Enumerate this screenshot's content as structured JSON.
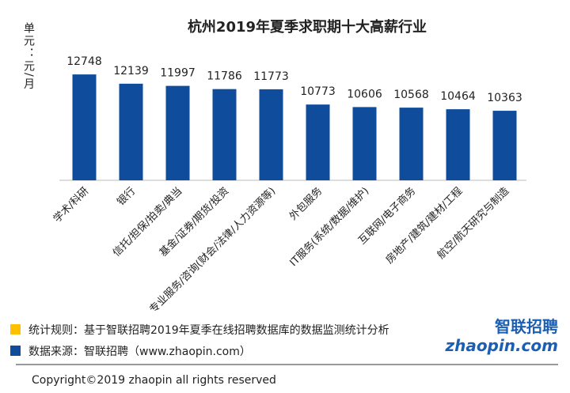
{
  "chart_data": {
    "type": "bar",
    "title": "杭州2019年夏季求职期十大高薪行业",
    "y_label": "单元：元/月",
    "categories": [
      "学术/科研",
      "银行",
      "信托/担保/拍卖/典当",
      "基金/证券/期货/投资",
      "专业服务/咨询(财会/法律/人力资源等)",
      "外包服务",
      "IT服务(系统/数据/维护)",
      "互联网/电子商务",
      "房地产/建筑/建材/工程",
      "航空/航天研究与制造"
    ],
    "values": [
      12748,
      12139,
      11997,
      11786,
      11773,
      10773,
      10606,
      10568,
      10464,
      10363
    ],
    "color": "#0f4c9c",
    "ylim": [
      5800,
      14000
    ],
    "grid": false
  },
  "notes": [
    "统计规则：基于智联招聘2019年夏季在线招聘数据库的数据监测统计分析",
    "数据来源：智联招聘（www.zhaopin.com）"
  ],
  "copyright": "Copyright©2019 zhaopin all rights reserved",
  "logo": {
    "name": "智联招聘",
    "site": "zhaopin.com"
  }
}
